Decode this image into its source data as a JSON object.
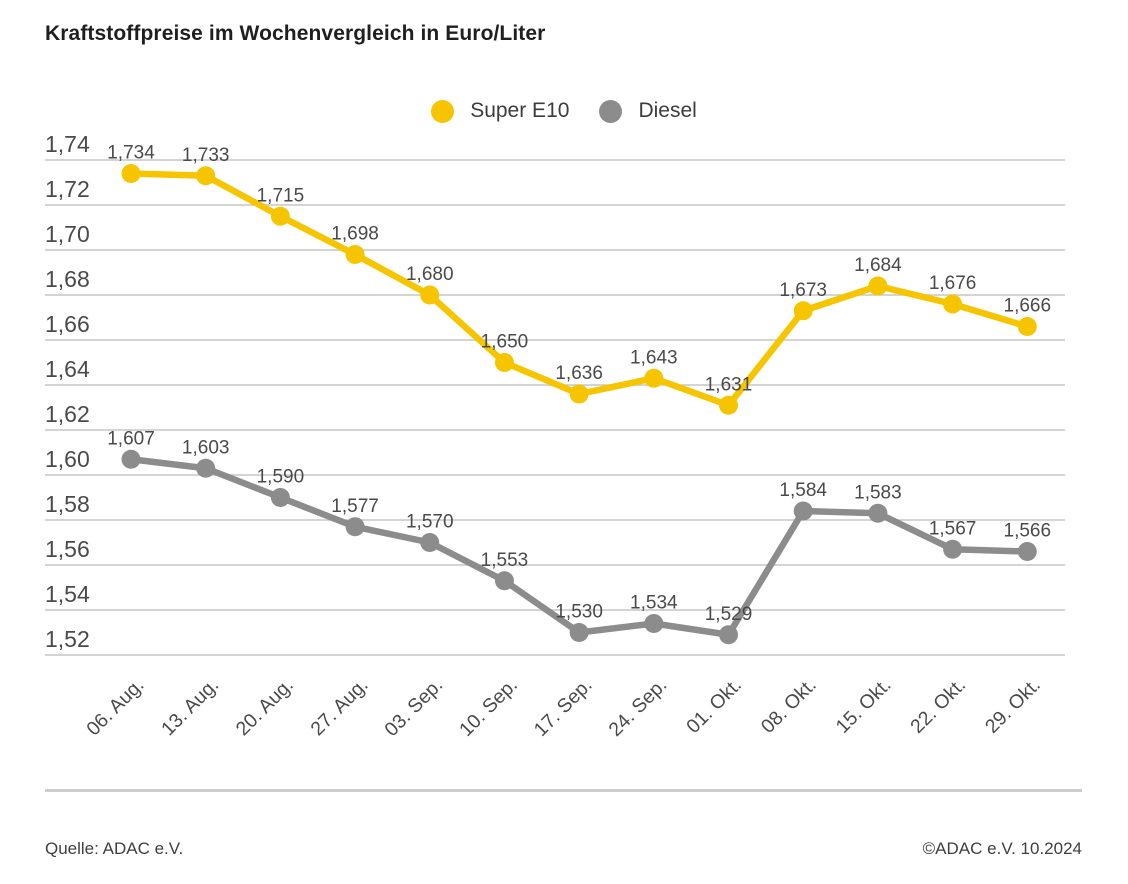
{
  "title": "Kraftstoffpreise im Wochenvergleich in Euro/Liter",
  "footer": {
    "source": "Quelle: ADAC e.V.",
    "copyright": "©ADAC e.V. 10.2024"
  },
  "chart_data": {
    "type": "line",
    "title": "Kraftstoffpreise im Wochenvergleich in Euro/Liter",
    "categories": [
      "06. Aug.",
      "13. Aug.",
      "20. Aug.",
      "27. Aug.",
      "03. Sep.",
      "10. Sep.",
      "17. Sep.",
      "24. Sep.",
      "01. Okt.",
      "08. Okt.",
      "15. Okt.",
      "22. Okt.",
      "29. Okt."
    ],
    "series": [
      {
        "name": "Super E10",
        "color": "#F6C500",
        "values": [
          1.734,
          1.733,
          1.715,
          1.698,
          1.68,
          1.65,
          1.636,
          1.643,
          1.631,
          1.673,
          1.684,
          1.676,
          1.666
        ]
      },
      {
        "name": "Diesel",
        "color": "#8C8C8C",
        "values": [
          1.607,
          1.603,
          1.59,
          1.577,
          1.57,
          1.553,
          1.53,
          1.534,
          1.529,
          1.584,
          1.583,
          1.567,
          1.566
        ]
      }
    ],
    "xlabel": "",
    "ylabel": "Euro/Liter",
    "ylim": [
      1.52,
      1.74
    ],
    "y_ticks": [
      1.74,
      1.72,
      1.7,
      1.68,
      1.66,
      1.64,
      1.62,
      1.6,
      1.58,
      1.56,
      1.54,
      1.52
    ],
    "decimal_separator": ",",
    "grid": true,
    "legend_position": "top",
    "data_labels": true,
    "grid_color": "#c6c6c6",
    "text_color": "#4a4a4a"
  }
}
